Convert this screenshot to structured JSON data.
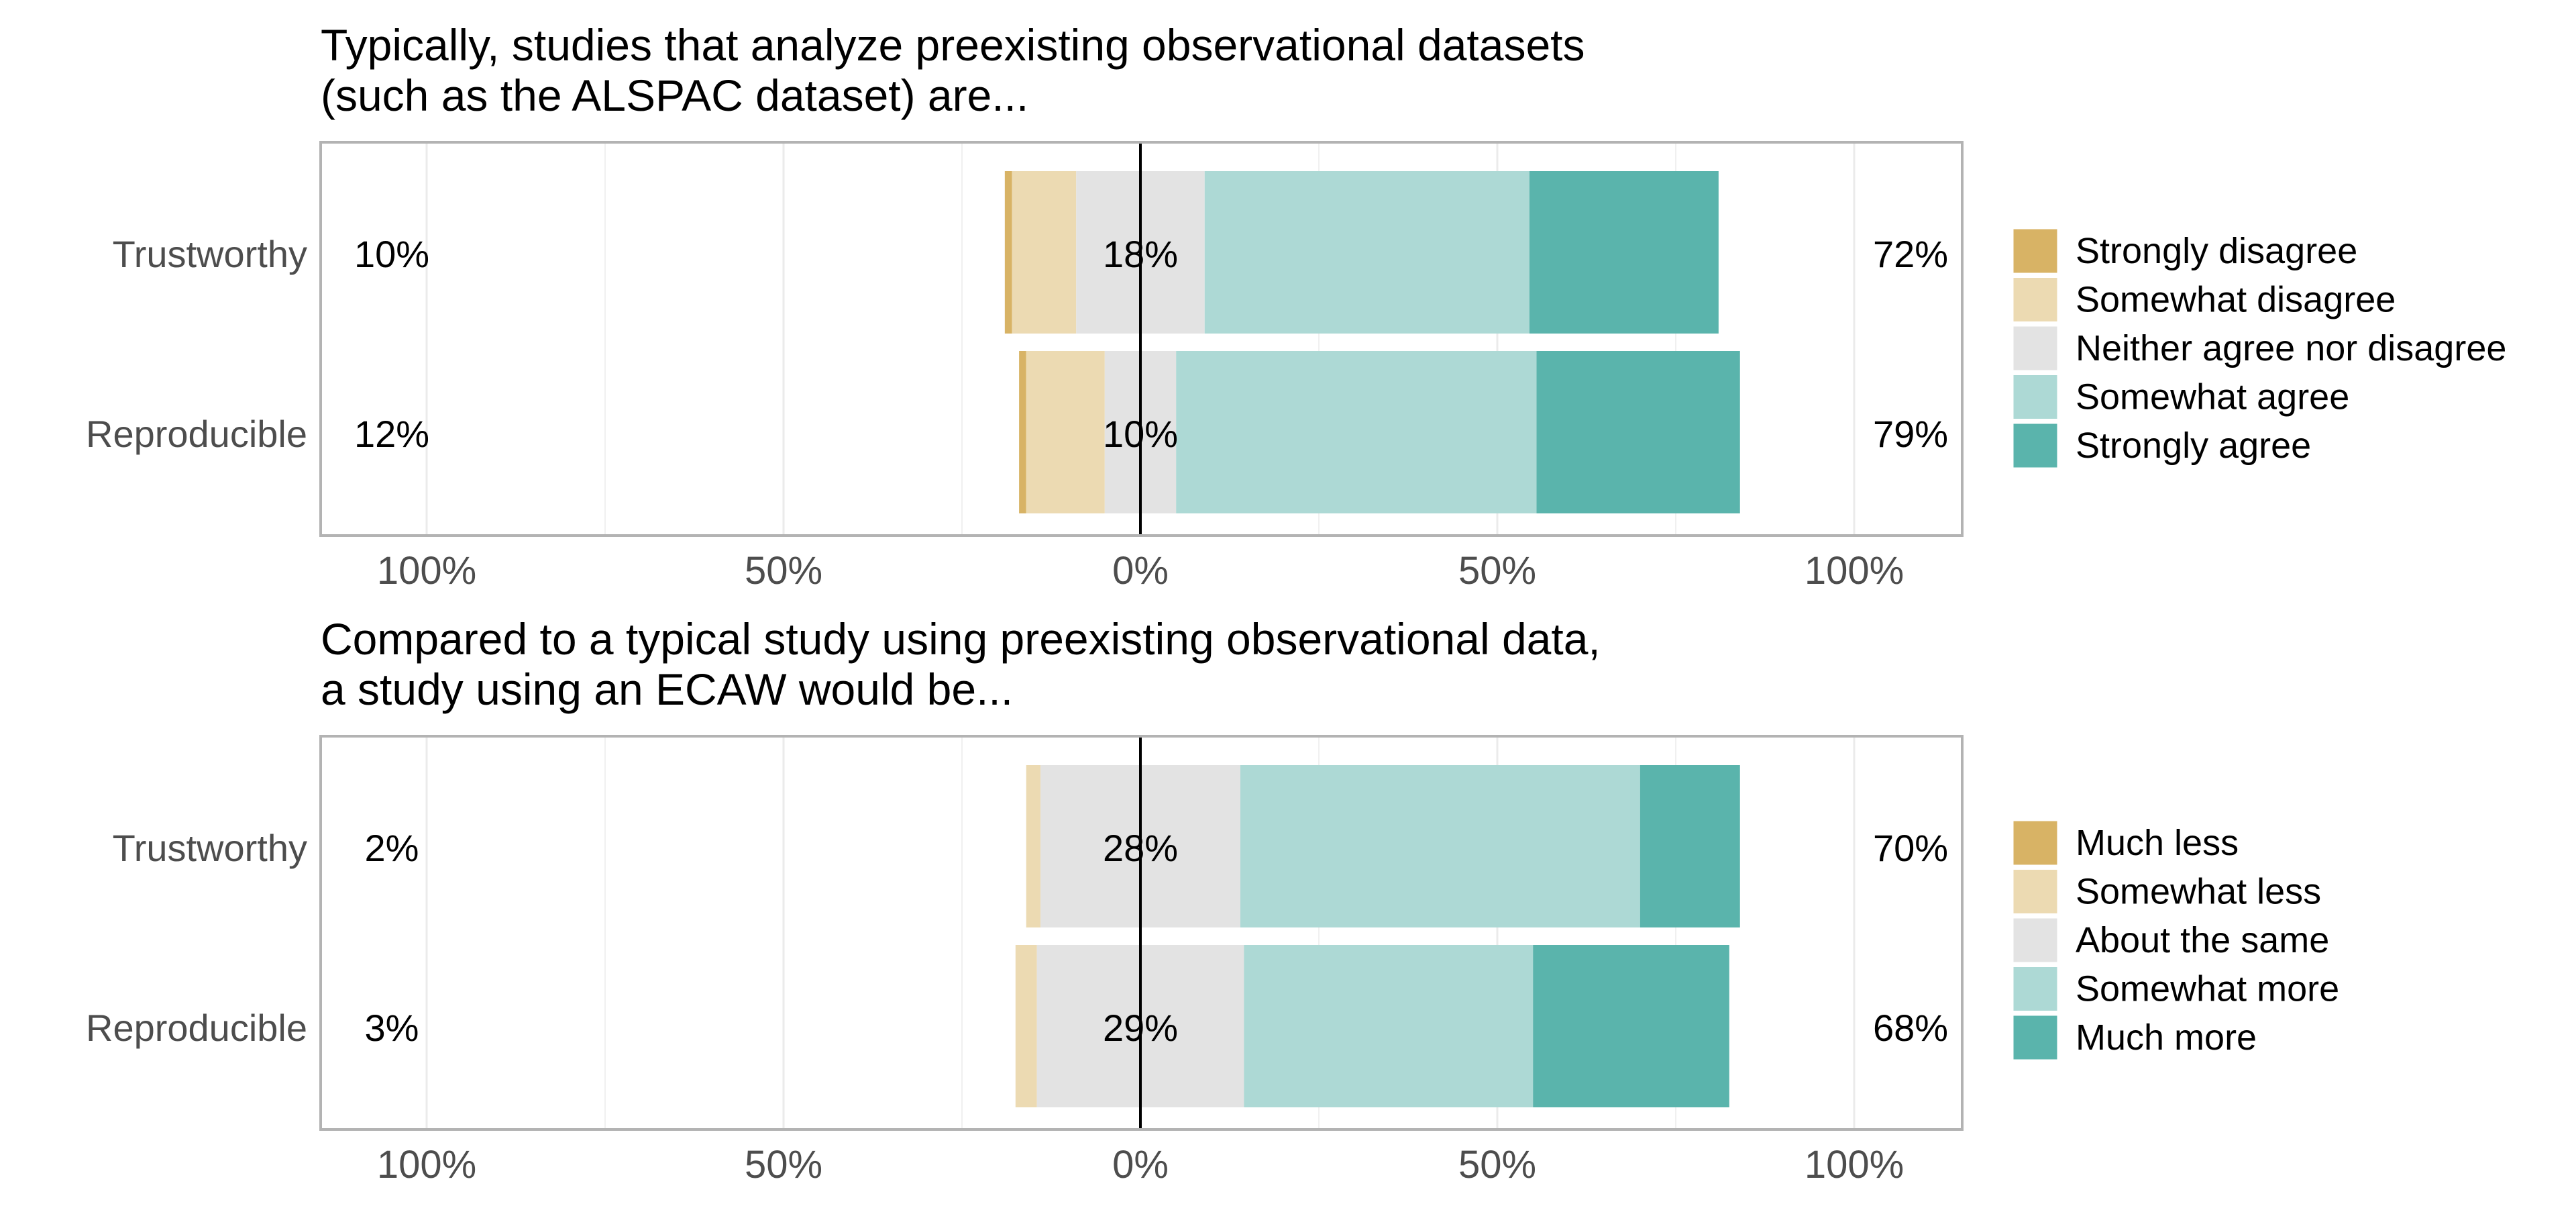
{
  "colors": {
    "strong_neg": "#D8B365",
    "some_neg": "#ECDAB2",
    "neutral": "#E3E3E3",
    "some_pos": "#ADD9D5",
    "strong_pos": "#5AB4AC",
    "panel_border": "#B3B3B3",
    "grid": "#EBEBEB",
    "axis_text": "#4D4D4D",
    "text": "#000000"
  },
  "chart_data": [
    {
      "type": "bar",
      "orientation": "horizontal-diverging",
      "title_lines": [
        "Typically, studies that analyze preexisting observational datasets",
        "(such as the ALSPAC dataset) are..."
      ],
      "xlim": [
        -115,
        115
      ],
      "xticks": [
        -100,
        -50,
        0,
        50,
        100
      ],
      "xtick_labels": [
        "100%",
        "50%",
        "0%",
        "50%",
        "100%"
      ],
      "legend_position": "right",
      "legend": [
        "Strongly disagree",
        "Somewhat disagree",
        "Neither agree nor disagree",
        "Somewhat agree",
        "Strongly agree"
      ],
      "categories": [
        "Trustworthy",
        "Reproducible"
      ],
      "series": [
        {
          "name": "Strongly disagree",
          "values": [
            1,
            1
          ]
        },
        {
          "name": "Somewhat disagree",
          "values": [
            9,
            11
          ]
        },
        {
          "name": "Neither agree nor disagree",
          "values": [
            18,
            10
          ]
        },
        {
          "name": "Somewhat agree",
          "values": [
            45.5,
            50.5
          ]
        },
        {
          "name": "Strongly agree",
          "values": [
            26.5,
            28.5
          ]
        }
      ],
      "left_labels": [
        "10%",
        "12%"
      ],
      "center_labels": [
        "18%",
        "10%"
      ],
      "right_labels": [
        "72%",
        "79%"
      ]
    },
    {
      "type": "bar",
      "orientation": "horizontal-diverging",
      "title_lines": [
        "Compared to a typical study using preexisting observational data,",
        "a study using an ECAW would be..."
      ],
      "xlim": [
        -115,
        115
      ],
      "xticks": [
        -100,
        -50,
        0,
        50,
        100
      ],
      "xtick_labels": [
        "100%",
        "50%",
        "0%",
        "50%",
        "100%"
      ],
      "legend_position": "right",
      "legend": [
        "Much less",
        "Somewhat less",
        "About the same",
        "Somewhat more",
        "Much more"
      ],
      "categories": [
        "Trustworthy",
        "Reproducible"
      ],
      "series": [
        {
          "name": "Much less",
          "values": [
            0,
            0
          ]
        },
        {
          "name": "Somewhat less",
          "values": [
            2,
            3
          ]
        },
        {
          "name": "About the same",
          "values": [
            28,
            29
          ]
        },
        {
          "name": "Somewhat more",
          "values": [
            56,
            40.5
          ]
        },
        {
          "name": "Much more",
          "values": [
            14,
            27.5
          ]
        }
      ],
      "left_labels": [
        "2%",
        "3%"
      ],
      "center_labels": [
        "28%",
        "29%"
      ],
      "right_labels": [
        "70%",
        "68%"
      ]
    }
  ]
}
